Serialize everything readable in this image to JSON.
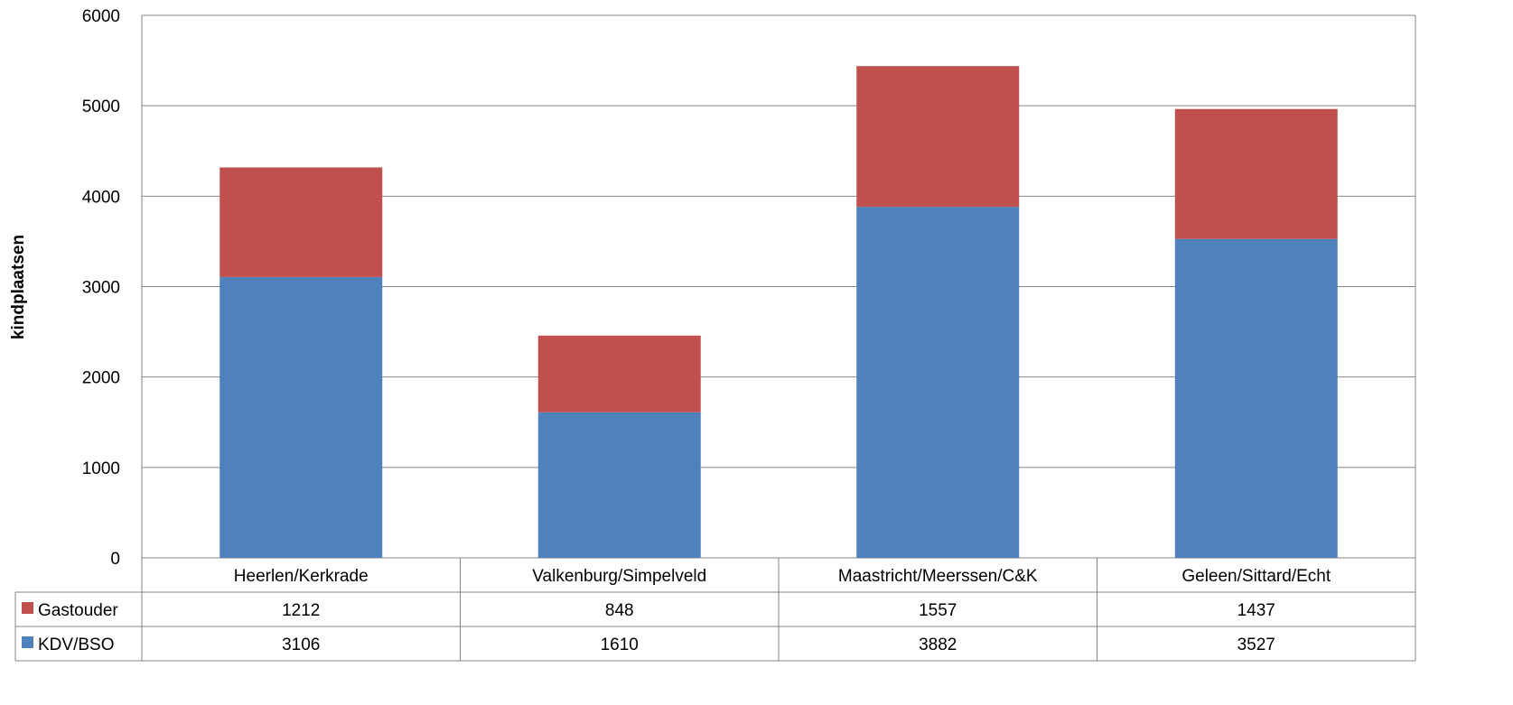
{
  "chart_data": {
    "type": "bar",
    "stacked": true,
    "categories": [
      "Heerlen/Kerkrade",
      "Valkenburg/Simpelveld",
      "Maastricht/Meerssen/C&K",
      "Geleen/Sittard/Echt"
    ],
    "series": [
      {
        "name": "KDV/BSO",
        "values": [
          3106,
          1610,
          3882,
          3527
        ],
        "color": "#4f81bd"
      },
      {
        "name": "Gastouder",
        "values": [
          1212,
          848,
          1557,
          1437
        ],
        "color": "#c0504d"
      }
    ],
    "table_rows": [
      {
        "name": "Gastouder",
        "values": [
          "1212",
          "848",
          "1557",
          "1437"
        ],
        "color": "#c0504d"
      },
      {
        "name": "KDV/BSO",
        "values": [
          "3106",
          "1610",
          "3882",
          "3527"
        ],
        "color": "#4f81bd"
      }
    ],
    "ylabel": "kindplaatsen",
    "ylim": [
      0,
      6000
    ],
    "yticks": [
      "0",
      "1000",
      "2000",
      "3000",
      "4000",
      "5000",
      "6000"
    ],
    "grid": true,
    "legend": "data-table"
  }
}
